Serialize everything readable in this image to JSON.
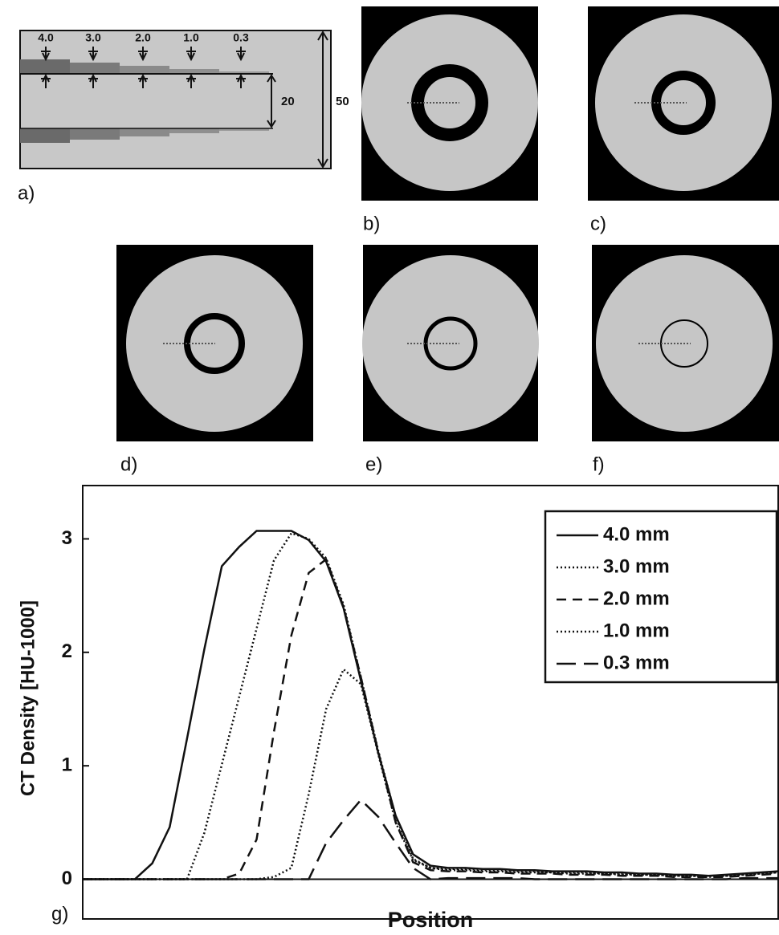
{
  "panels": {
    "a": {
      "label": "a)",
      "thickness_labels": [
        "4.0",
        "3.0",
        "2.0",
        "1.0",
        "0.3"
      ],
      "gap_label": "20",
      "height_label": "50"
    },
    "b": {
      "label": "b)"
    },
    "c": {
      "label": "c)"
    },
    "d": {
      "label": "d)"
    },
    "e": {
      "label": "e)"
    },
    "f": {
      "label": "f)"
    },
    "g": {
      "label": "g)"
    }
  },
  "chart_data": {
    "type": "line",
    "y_label": "CT Density [HU-1000]",
    "x_label": "Position",
    "x": [
      0,
      2.5,
      5,
      7.5,
      10,
      12.5,
      15,
      17.5,
      20,
      22.5,
      25,
      27.5,
      30,
      32.5,
      35,
      37.5,
      40,
      42.5,
      45,
      47.5,
      50,
      52.5,
      55,
      57.5,
      60,
      62.5,
      65,
      67.5,
      70,
      72.5,
      75,
      77.5,
      80,
      82.5,
      85,
      87.5,
      90,
      92.5,
      95,
      97.5,
      100
    ],
    "xlim": [
      0,
      100
    ],
    "ylim": [
      -0.35,
      3.47
    ],
    "yticks": [
      0,
      1,
      2,
      3
    ],
    "zero_line": true,
    "legend": "upper right",
    "series": [
      {
        "name": "4.0 mm",
        "color": "#111111",
        "dash": "solid",
        "values": [
          0,
          0,
          0,
          0,
          0.14,
          0.46,
          1.24,
          2.03,
          2.76,
          2.93,
          3.07,
          3.07,
          3.07,
          2.99,
          2.8,
          2.39,
          1.75,
          1.11,
          0.56,
          0.22,
          0.12,
          0.1,
          0.1,
          0.09,
          0.09,
          0.08,
          0.08,
          0.07,
          0.07,
          0.07,
          0.06,
          0.06,
          0.05,
          0.05,
          0.04,
          0.04,
          0.03,
          0.04,
          0.05,
          0.06,
          0.07
        ]
      },
      {
        "name": "3.0 mm",
        "color": "#111111",
        "dash": "dotted",
        "values": [
          0,
          0,
          0,
          0,
          0,
          0,
          0,
          0.41,
          1.01,
          1.61,
          2.21,
          2.81,
          3.05,
          3.0,
          2.83,
          2.42,
          1.78,
          1.13,
          0.55,
          0.18,
          0.1,
          0.09,
          0.09,
          0.08,
          0.08,
          0.07,
          0.07,
          0.06,
          0.06,
          0.06,
          0.05,
          0.05,
          0.04,
          0.04,
          0.03,
          0.03,
          0.02,
          0.03,
          0.04,
          0.05,
          0.06
        ]
      },
      {
        "name": "2.0 mm",
        "color": "#111111",
        "dash": "dashed",
        "values": [
          0,
          0,
          0,
          0,
          0,
          0,
          0,
          0,
          0,
          0.05,
          0.35,
          1.3,
          2.15,
          2.7,
          2.82,
          2.4,
          1.78,
          1.12,
          0.5,
          0.15,
          0.08,
          0.07,
          0.07,
          0.06,
          0.06,
          0.05,
          0.05,
          0.05,
          0.04,
          0.04,
          0.04,
          0.03,
          0.03,
          0.03,
          0.02,
          0.02,
          0.02,
          0.02,
          0.03,
          0.04,
          0.05
        ]
      },
      {
        "name": "1.0 mm",
        "color": "#111111",
        "dash": "dotted",
        "values": [
          0,
          0,
          0,
          0,
          0,
          0,
          0,
          0,
          0,
          0,
          0,
          0.02,
          0.1,
          0.75,
          1.5,
          1.85,
          1.72,
          1.1,
          0.5,
          0.17,
          0.1,
          0.08,
          0.08,
          0.07,
          0.07,
          0.06,
          0.06,
          0.06,
          0.05,
          0.05,
          0.05,
          0.04,
          0.04,
          0.04,
          0.03,
          0.03,
          0.03,
          0.03,
          0.04,
          0.05,
          0.06
        ]
      },
      {
        "name": "0.3 mm",
        "color": "#111111",
        "dash": "longdash",
        "values": [
          0,
          0,
          0,
          0,
          0,
          0,
          0,
          0,
          0,
          0,
          0,
          0,
          0,
          0,
          0.32,
          0.52,
          0.7,
          0.55,
          0.32,
          0.1,
          0,
          0.01,
          0.01,
          0.01,
          0.01,
          0.01,
          0,
          0,
          0,
          0,
          0,
          0,
          0,
          0,
          0,
          0,
          0,
          0,
          0.01,
          0.01,
          0.01
        ]
      }
    ]
  }
}
